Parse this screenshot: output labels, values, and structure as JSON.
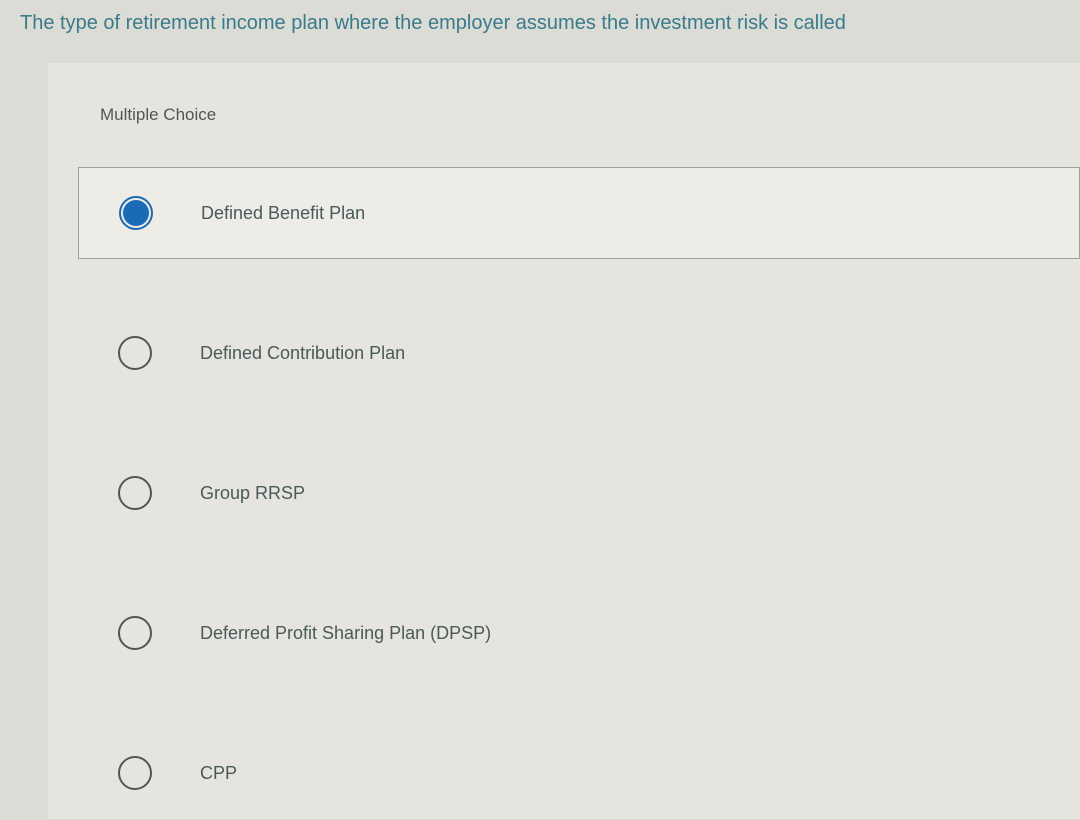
{
  "question": {
    "text": "The type of retirement income plan where the employer assumes the investment risk is called",
    "text_color": "#3a7a8a",
    "fontsize": 20
  },
  "section_label": "Multiple Choice",
  "options": [
    {
      "label": "Defined Benefit Plan",
      "selected": true
    },
    {
      "label": "Defined Contribution Plan",
      "selected": false
    },
    {
      "label": "Group RRSP",
      "selected": false
    },
    {
      "label": "Deferred Profit Sharing Plan (DPSP)",
      "selected": false
    },
    {
      "label": "CPP",
      "selected": false
    }
  ],
  "colors": {
    "page_bg": "#dcdcd6",
    "panel_bg": "#e5e4de",
    "selected_bg": "#edece7",
    "selected_border": "#9aa3a0",
    "radio_border": "#555555",
    "radio_fill": "#1a6ab5",
    "label_color": "#4a5a5a",
    "section_label_color": "#555555"
  },
  "typography": {
    "question_fontsize": 20,
    "section_label_fontsize": 17,
    "option_fontsize": 18,
    "font_family": "Arial"
  }
}
